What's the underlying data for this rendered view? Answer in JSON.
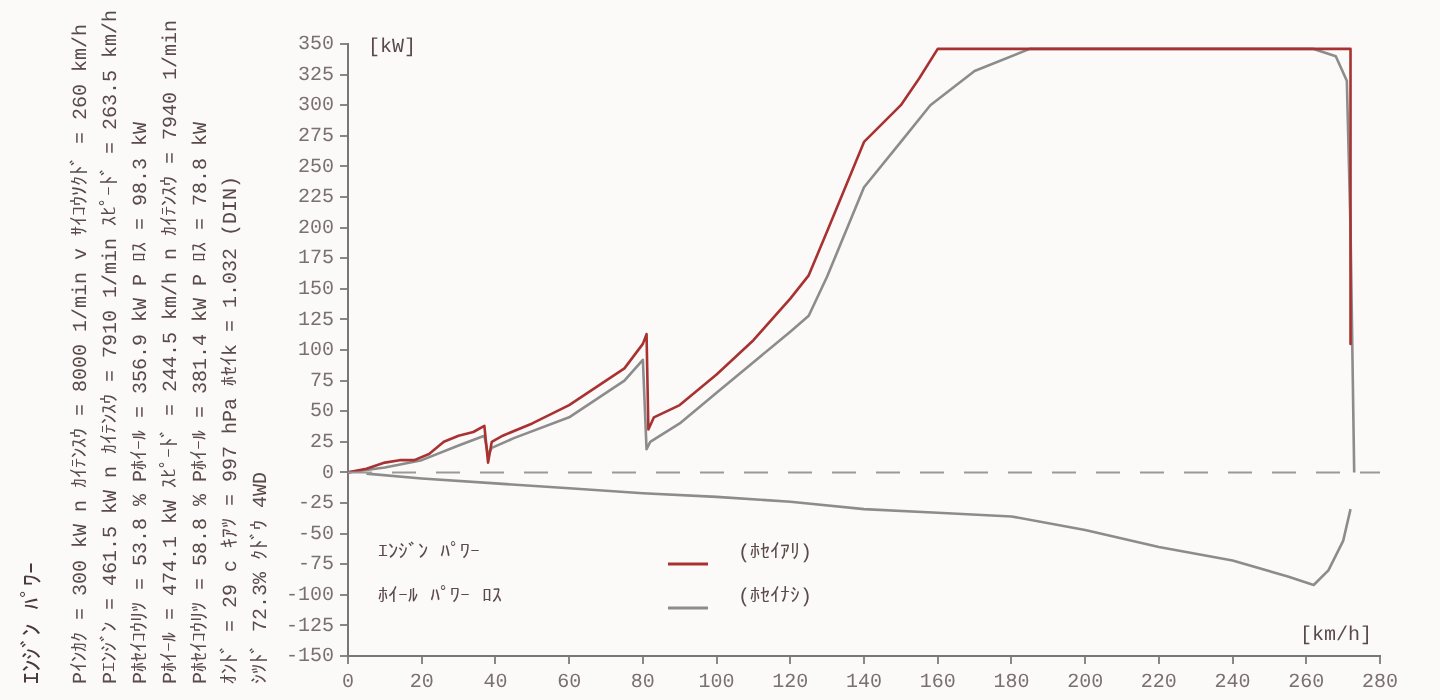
{
  "chart_data": {
    "type": "line",
    "title": "ｴﾝｼﾞﾝ ﾊﾟﾜｰ",
    "xlabel": "[km/h]",
    "ylabel": "[kW]",
    "xlim": [
      0,
      280
    ],
    "xticks": [
      0,
      20,
      40,
      60,
      80,
      100,
      120,
      140,
      160,
      180,
      200,
      220,
      240,
      260,
      280
    ],
    "ylim": [
      -150,
      350
    ],
    "yticks": [
      -150,
      -125,
      -100,
      -75,
      -50,
      -25,
      0,
      25,
      50,
      75,
      100,
      125,
      150,
      175,
      200,
      225,
      250,
      275,
      300,
      325,
      350
    ],
    "grid": false,
    "legend": "bottom left",
    "marker": "none",
    "line_style": "solid",
    "ref_lines": [
      {
        "axis": "y",
        "value": 0,
        "color": "#999999",
        "line_style": "dashed"
      }
    ],
    "annotations": [
      "ｴﾝｼﾞﾝ ﾊﾟﾜｰ",
      "ﾎｲｰﾙ ﾊﾟﾜｰ ﾛｽ",
      "Pｲﾝｶｸ = 300 kW  n ｶｲﾃﾝｽｳ = 8000 1/min  v ｻｲｺｳｿｸﾄﾞ = 260 km/h",
      "Pｴﾝｼﾞﾝ = 461.5 kW  n ｶｲﾃﾝｽｳ = 7910 1/min  ｽﾋﾟｰﾄﾞ = 263.5 km/h",
      "Pﾎｾｲｺｳﾘﾂ = 53.8 %  Pﾎｲｰﾙ = 356.9 kW  P ﾛｽ = 98.3 kW",
      "Pﾎｲｰﾙ = 474.1 kW  ｽﾋﾟｰﾄﾞ = 244.5 km/h  n ｶｲﾃﾝｽｳ = 7940 1/min",
      "Pﾎｾｲｺｳﾘﾂ = 58.8 %  Pﾎｲｰﾙ = 381.4 kW  P ﾛｽ = 78.8 kW",
      "ｵﾝﾄﾞ = 29 c  ｷｱﾂ = 997 hPa  ﾎｾｲk = 1.032 (DIN)",
      "ｼﾂﾄﾞ 72.3%  ｸﾄﾞｳ 4WD"
    ],
    "series": [
      {
        "name": "(ﾎｾｲｱﾘ)",
        "color": "#a83232",
        "x": [
          0,
          5,
          10,
          14,
          18,
          22,
          26,
          30,
          34,
          37,
          38,
          39,
          42,
          50,
          60,
          70,
          75,
          80,
          81,
          81.5,
          83,
          90,
          100,
          110,
          120,
          125,
          130,
          140,
          150,
          155,
          160,
          180,
          200,
          220,
          240,
          260,
          272,
          272
        ],
        "values": [
          0,
          3,
          8,
          10,
          10,
          15,
          25,
          30,
          33,
          38,
          8,
          25,
          30,
          40,
          55,
          75,
          85,
          105,
          113,
          35,
          45,
          55,
          80,
          108,
          142,
          161,
          197,
          270,
          300,
          322,
          346,
          346,
          346,
          346,
          346,
          346,
          346,
          105
        ]
      },
      {
        "name": "(ﾎｾｲﾅｼ)",
        "color": "#8c8c8c",
        "x": [
          0,
          10,
          20,
          30,
          37,
          38,
          39,
          45,
          60,
          75,
          80,
          81,
          82,
          90,
          100,
          110,
          120,
          125,
          130,
          140,
          150,
          158,
          170,
          185,
          200,
          240,
          262,
          268,
          271,
          272,
          273
        ],
        "values": [
          0,
          4,
          10,
          22,
          30,
          14,
          20,
          28,
          45,
          75,
          92,
          19,
          25,
          40,
          65,
          90,
          115,
          128,
          160,
          233,
          270,
          300,
          328,
          346,
          346,
          346,
          346,
          340,
          320,
          200,
          0
        ]
      },
      {
        "color": "#8c8c8c",
        "x": [
          5,
          20,
          40,
          60,
          80,
          100,
          120,
          140,
          160,
          180,
          200,
          220,
          240,
          255,
          262,
          266,
          270,
          272
        ],
        "values": [
          -1,
          -5,
          -9,
          -13,
          -17,
          -20,
          -24,
          -30,
          -33,
          -36,
          -47,
          -61,
          -72,
          -85,
          -92,
          -80,
          -56,
          -30
        ]
      }
    ]
  }
}
